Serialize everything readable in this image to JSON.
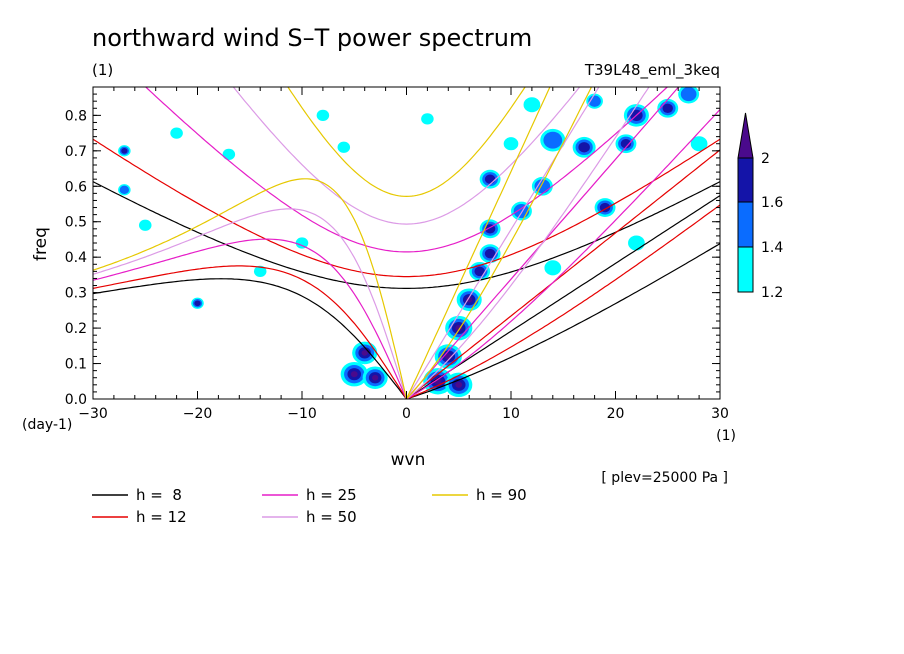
{
  "chart_data": {
    "type": "contour",
    "title": "northward wind S–T power spectrum",
    "units_label": "(1)",
    "run_label": "T39L48_eml_3keq",
    "xlabel": "wvn",
    "ylabel": "freq",
    "x_unit_label": "(1)",
    "y_unit_label": "(day-1)",
    "level_note": "[ plev=25000 Pa ]",
    "xlim": [
      -30,
      30
    ],
    "ylim": [
      0,
      0.88
    ],
    "x_ticks": [
      "−30",
      "−20",
      "−10",
      "0",
      "10",
      "20",
      "30"
    ],
    "y_ticks": [
      "0.0",
      "0.1",
      "0.2",
      "0.3",
      "0.4",
      "0.5",
      "0.6",
      "0.7",
      "0.8"
    ],
    "colorbar": {
      "levels": [
        "1.2",
        "1.4",
        "1.6",
        "2"
      ],
      "colors": [
        "#00ffff",
        "#0a6cff",
        "#1414a8",
        "#4a0a8c"
      ]
    },
    "dispersion_curves": [
      {
        "name": "h =  8",
        "h": 8,
        "color": "#000000"
      },
      {
        "name": "h = 12",
        "h": 12,
        "color": "#e60000"
      },
      {
        "name": "h = 25",
        "h": 25,
        "color": "#e61ec8"
      },
      {
        "name": "h = 50",
        "h": 50,
        "color": "#dc9be6"
      },
      {
        "name": "h = 90",
        "h": 90,
        "color": "#e6c800"
      }
    ],
    "blobs": [
      {
        "x": -27,
        "y": 0.7,
        "r": 0.6,
        "lv": 3
      },
      {
        "x": -27,
        "y": 0.59,
        "r": 0.6,
        "lv": 2
      },
      {
        "x": -20,
        "y": 0.27,
        "r": 0.6,
        "lv": 3
      },
      {
        "x": -25,
        "y": 0.49,
        "r": 0.6,
        "lv": 1
      },
      {
        "x": -10,
        "y": 0.44,
        "r": 0.6,
        "lv": 1
      },
      {
        "x": -6,
        "y": 0.71,
        "r": 0.6,
        "lv": 1
      },
      {
        "x": -4,
        "y": 0.13,
        "r": 1.2,
        "lv": 4
      },
      {
        "x": -5,
        "y": 0.07,
        "r": 1.3,
        "lv": 4
      },
      {
        "x": -3,
        "y": 0.06,
        "r": 1.2,
        "lv": 4
      },
      {
        "x": 3,
        "y": 0.05,
        "r": 1.4,
        "lv": 4
      },
      {
        "x": 5,
        "y": 0.04,
        "r": 1.3,
        "lv": 4
      },
      {
        "x": 4,
        "y": 0.12,
        "r": 1.3,
        "lv": 4
      },
      {
        "x": 5,
        "y": 0.2,
        "r": 1.3,
        "lv": 4
      },
      {
        "x": 6,
        "y": 0.28,
        "r": 1.2,
        "lv": 4
      },
      {
        "x": 7,
        "y": 0.36,
        "r": 1.0,
        "lv": 3
      },
      {
        "x": 8,
        "y": 0.41,
        "r": 1.0,
        "lv": 3
      },
      {
        "x": 8,
        "y": 0.48,
        "r": 1.0,
        "lv": 3
      },
      {
        "x": 8,
        "y": 0.62,
        "r": 1.0,
        "lv": 3
      },
      {
        "x": 11,
        "y": 0.53,
        "r": 1.0,
        "lv": 2
      },
      {
        "x": 13,
        "y": 0.6,
        "r": 1.0,
        "lv": 2
      },
      {
        "x": 17,
        "y": 0.71,
        "r": 1.1,
        "lv": 3
      },
      {
        "x": 19,
        "y": 0.54,
        "r": 1.0,
        "lv": 3
      },
      {
        "x": 21,
        "y": 0.72,
        "r": 1.0,
        "lv": 3
      },
      {
        "x": 22,
        "y": 0.8,
        "r": 1.2,
        "lv": 3
      },
      {
        "x": 25,
        "y": 0.82,
        "r": 1.0,
        "lv": 3
      },
      {
        "x": 27,
        "y": 0.86,
        "r": 1.0,
        "lv": 2
      },
      {
        "x": 14,
        "y": 0.73,
        "r": 1.2,
        "lv": 2
      },
      {
        "x": 14,
        "y": 0.37,
        "r": 0.8,
        "lv": 1
      },
      {
        "x": 22,
        "y": 0.44,
        "r": 0.8,
        "lv": 1
      },
      {
        "x": 28,
        "y": 0.72,
        "r": 0.8,
        "lv": 1
      },
      {
        "x": -17,
        "y": 0.69,
        "r": 0.6,
        "lv": 1
      },
      {
        "x": -14,
        "y": 0.36,
        "r": 0.6,
        "lv": 1
      },
      {
        "x": 12,
        "y": 0.83,
        "r": 0.8,
        "lv": 1
      },
      {
        "x": 18,
        "y": 0.84,
        "r": 0.8,
        "lv": 2
      },
      {
        "x": -8,
        "y": 0.8,
        "r": 0.6,
        "lv": 1
      },
      {
        "x": -22,
        "y": 0.75,
        "r": 0.6,
        "lv": 1
      },
      {
        "x": 2,
        "y": 0.79,
        "r": 0.6,
        "lv": 1
      },
      {
        "x": 10,
        "y": 0.72,
        "r": 0.7,
        "lv": 1
      }
    ]
  }
}
